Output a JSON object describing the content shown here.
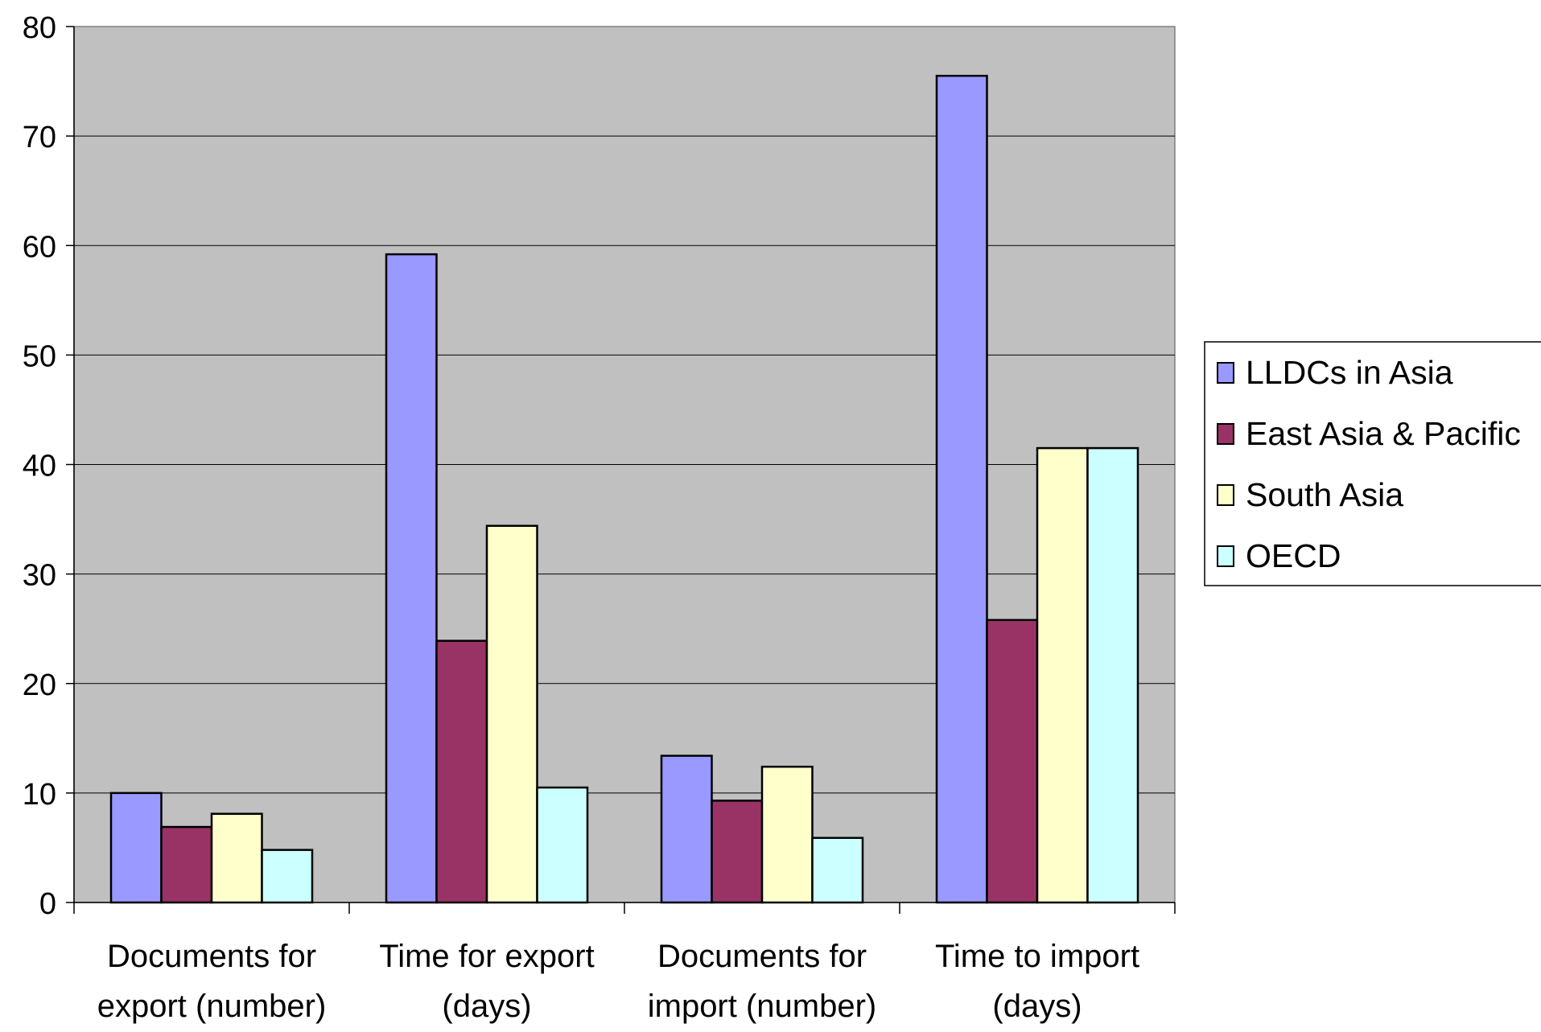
{
  "chart_data": {
    "type": "bar",
    "title": "",
    "xlabel": "",
    "ylabel": "",
    "ylim": [
      0,
      80
    ],
    "yticks": [
      "0",
      "10",
      "20",
      "30",
      "40",
      "50",
      "60",
      "70",
      "80"
    ],
    "grid": true,
    "legend_position": "right",
    "plot_background": "#c0c0c0",
    "categories": [
      [
        "Documents for",
        "export (number)"
      ],
      [
        "Time for export",
        "(days)"
      ],
      [
        "Documents for",
        "import (number)"
      ],
      [
        "Time to import",
        "(days)"
      ]
    ],
    "series": [
      {
        "name": "LLDCs in Asia",
        "color": "#9999ff",
        "values": [
          10,
          59.2,
          13.4,
          75.5
        ]
      },
      {
        "name": "East Asia & Pacific",
        "color": "#993366",
        "values": [
          6.9,
          23.9,
          9.3,
          25.8
        ]
      },
      {
        "name": "South Asia",
        "color": "#ffffcc",
        "values": [
          8.1,
          34.4,
          12.4,
          41.5
        ]
      },
      {
        "name": "OECD",
        "color": "#ccffff",
        "values": [
          4.8,
          10.5,
          5.9,
          41.5
        ]
      }
    ]
  }
}
